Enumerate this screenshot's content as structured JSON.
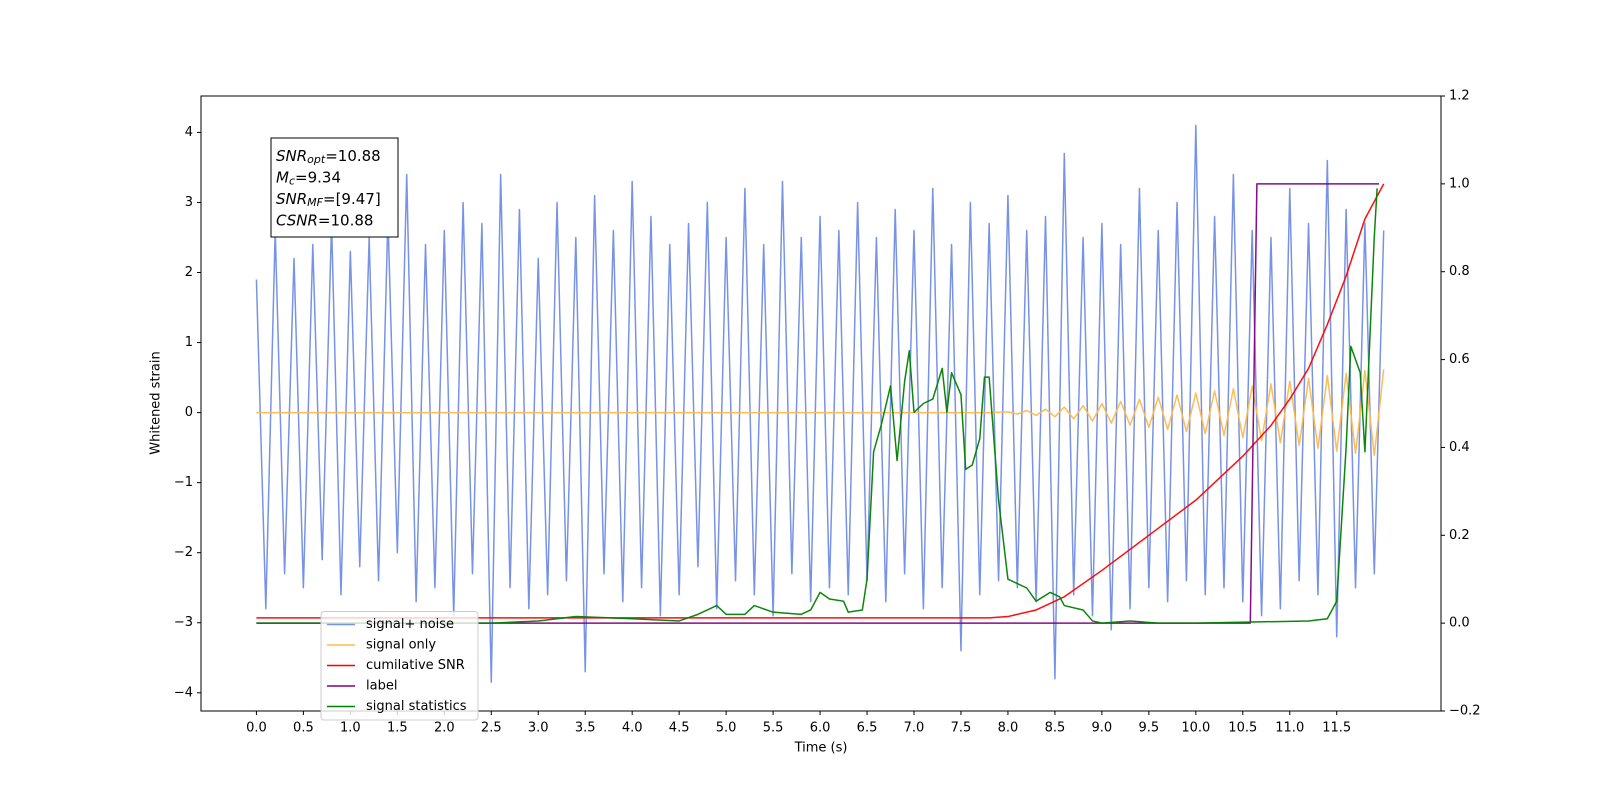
{
  "chart_data": {
    "type": "line",
    "xlabel": "Time (s)",
    "ylabel": "Whitened strain",
    "xlim": [
      -0.59,
      12.61
    ],
    "ylim": [
      -4.26,
      4.52
    ],
    "y2lim": [
      -0.2,
      1.2
    ],
    "xticks": [
      {
        "value": 0,
        "label": "0.0"
      },
      0.5,
      {
        "value": 1,
        "label": "1.0"
      },
      1.5,
      {
        "value": 2,
        "label": "2.0"
      },
      2.5,
      {
        "value": 3,
        "label": "3.0"
      },
      3.5,
      {
        "value": 4,
        "label": "4.0"
      },
      4.5,
      {
        "value": 5,
        "label": "5.0"
      },
      5.5,
      {
        "value": 6,
        "label": "6.0"
      },
      6.5,
      {
        "value": 7,
        "label": "7.0"
      },
      7.5,
      {
        "value": 8,
        "label": "8.0"
      },
      8.5,
      {
        "value": 9,
        "label": "9.0"
      },
      9.5,
      {
        "value": 10,
        "label": "10.0"
      },
      10.5,
      {
        "value": 11,
        "label": "11.0"
      },
      11.5
    ],
    "yticks": [
      {
        "value": -4,
        "label": "−4"
      },
      {
        "value": -3,
        "label": "−3"
      },
      {
        "value": -2,
        "label": "−2"
      },
      {
        "value": -1,
        "label": "−1"
      },
      0,
      1,
      2,
      3,
      4
    ],
    "y2ticks": [
      {
        "value": -0.2,
        "label": "−0.2"
      },
      {
        "value": 0,
        "label": "0.0"
      },
      0.2,
      0.4,
      0.6,
      0.8,
      {
        "value": 1,
        "label": "1.0"
      },
      1.2
    ],
    "legend_loc": "lower left",
    "annotations": [
      {
        "symbol": "SNR",
        "subscript": "opt",
        "text": "=10.88"
      },
      {
        "symbol": "M",
        "subscript": "c",
        "text": "=9.34"
      },
      {
        "symbol": "SNR",
        "subscript": "MF",
        "text": "=[9.47]"
      },
      {
        "symbol": "CSNR",
        "text": "=10.88"
      }
    ],
    "series": [
      {
        "name": "signal+ noise",
        "color": "#7893e6",
        "x": [
          0.0,
          0.1,
          0.2,
          0.3,
          0.4,
          0.5,
          0.6,
          0.7,
          0.8,
          0.9,
          1.0,
          1.1,
          1.2,
          1.3,
          1.4,
          1.5,
          1.6,
          1.7,
          1.8,
          1.9,
          2.0,
          2.1,
          2.2,
          2.3,
          2.4,
          2.5,
          2.6,
          2.7,
          2.8,
          2.9,
          3.0,
          3.1,
          3.2,
          3.3,
          3.4,
          3.5,
          3.6,
          3.7,
          3.8,
          3.9,
          4.0,
          4.1,
          4.2,
          4.3,
          4.4,
          4.5,
          4.6,
          4.7,
          4.8,
          4.9,
          5.0,
          5.1,
          5.2,
          5.3,
          5.4,
          5.5,
          5.6,
          5.7,
          5.8,
          5.9,
          6.0,
          6.1,
          6.2,
          6.3,
          6.4,
          6.5,
          6.6,
          6.7,
          6.8,
          6.9,
          7.0,
          7.1,
          7.2,
          7.3,
          7.4,
          7.5,
          7.6,
          7.7,
          7.8,
          7.9,
          8.0,
          8.1,
          8.2,
          8.3,
          8.4,
          8.5,
          8.6,
          8.7,
          8.8,
          8.9,
          9.0,
          9.1,
          9.2,
          9.3,
          9.4,
          9.5,
          9.6,
          9.7,
          9.8,
          9.9,
          10.0,
          10.1,
          10.2,
          10.3,
          10.4,
          10.5,
          10.6,
          10.7,
          10.8,
          10.9,
          11.0,
          11.1,
          11.2,
          11.3,
          11.4,
          11.5,
          11.6,
          11.7,
          11.8,
          11.9,
          12.0
        ],
        "values": [
          1.9,
          -2.8,
          2.6,
          -2.3,
          2.2,
          -2.5,
          2.4,
          -2.1,
          2.7,
          -2.6,
          2.3,
          -2.2,
          2.5,
          -2.4,
          2.8,
          -2.0,
          3.4,
          -2.7,
          2.4,
          -2.5,
          2.6,
          -2.9,
          3.0,
          -2.3,
          2.7,
          -3.85,
          3.4,
          -2.5,
          2.9,
          -2.8,
          2.2,
          -2.6,
          3.0,
          -2.4,
          2.5,
          -3.7,
          3.1,
          -2.3,
          2.6,
          -2.7,
          3.3,
          -2.5,
          2.8,
          -2.9,
          2.4,
          -2.6,
          2.7,
          -2.2,
          3.0,
          -2.8,
          2.5,
          -2.4,
          3.2,
          -2.6,
          2.4,
          -2.9,
          3.3,
          -2.3,
          2.5,
          -2.7,
          2.8,
          -2.5,
          2.6,
          -2.6,
          3.0,
          -2.4,
          2.5,
          -2.7,
          2.9,
          -2.3,
          2.6,
          -2.8,
          3.2,
          -2.5,
          2.4,
          -3.4,
          3.0,
          -2.6,
          2.7,
          -2.4,
          3.1,
          -2.5,
          2.6,
          -2.7,
          2.8,
          -3.8,
          3.7,
          -2.6,
          2.5,
          -2.9,
          2.7,
          -3.1,
          2.4,
          -2.8,
          3.2,
          -2.5,
          2.6,
          -2.7,
          3.0,
          -2.4,
          4.1,
          -2.6,
          2.8,
          -2.5,
          3.4,
          -2.7,
          2.6,
          -2.9,
          2.5,
          -2.8,
          3.2,
          -2.4,
          2.7,
          -2.6,
          3.6,
          -3.2,
          2.9,
          -2.5,
          2.7,
          -2.3,
          2.6
        ]
      },
      {
        "name": "signal only",
        "color": "#ffb84d",
        "x": [
          0.0,
          7.8,
          8.0,
          8.1,
          8.2,
          8.3,
          8.4,
          8.5,
          8.6,
          8.7,
          8.8,
          8.9,
          9.0,
          9.1,
          9.2,
          9.3,
          9.4,
          9.5,
          9.6,
          9.7,
          9.8,
          9.9,
          10.0,
          10.1,
          10.2,
          10.3,
          10.4,
          10.5,
          10.6,
          10.7,
          10.8,
          10.9,
          11.0,
          11.1,
          11.2,
          11.3,
          11.4,
          11.5,
          11.6,
          11.7,
          11.8,
          11.9,
          12.0
        ],
        "values": [
          0,
          0,
          0.01,
          -0.02,
          0.03,
          -0.04,
          0.05,
          -0.06,
          0.08,
          -0.09,
          0.1,
          -0.12,
          0.13,
          -0.15,
          0.16,
          -0.18,
          0.19,
          -0.21,
          0.22,
          -0.24,
          0.25,
          -0.27,
          0.28,
          -0.3,
          0.31,
          -0.33,
          0.34,
          -0.36,
          0.38,
          -0.4,
          0.41,
          -0.43,
          0.45,
          -0.47,
          0.49,
          -0.51,
          0.53,
          -0.55,
          0.56,
          -0.58,
          0.6,
          -0.61,
          0.62
        ]
      },
      {
        "name": "cumilative SNR",
        "color": "#ff0000",
        "axis": "y2",
        "x": [
          0.0,
          7.8,
          8.0,
          8.3,
          8.6,
          9.0,
          9.5,
          10.0,
          10.5,
          10.8,
          11.0,
          11.2,
          11.4,
          11.6,
          11.8,
          12.0
        ],
        "values": [
          0.012,
          0.012,
          0.015,
          0.03,
          0.06,
          0.12,
          0.2,
          0.28,
          0.38,
          0.45,
          0.51,
          0.58,
          0.68,
          0.79,
          0.92,
          1.0
        ]
      },
      {
        "name": "label",
        "color": "#800080",
        "axis": "y2",
        "x": [
          0.0,
          10.58,
          10.65,
          11.95
        ],
        "values": [
          0,
          0,
          1.0,
          1.0
        ]
      },
      {
        "name": "signal statistics",
        "color": "#008000",
        "axis": "y2",
        "x": [
          0.0,
          2.5,
          3.0,
          3.4,
          4.0,
          4.5,
          4.7,
          4.9,
          5.0,
          5.2,
          5.3,
          5.5,
          5.8,
          5.9,
          6.0,
          6.1,
          6.25,
          6.3,
          6.45,
          6.5,
          6.57,
          6.65,
          6.75,
          6.82,
          6.9,
          6.95,
          7.0,
          7.1,
          7.2,
          7.3,
          7.35,
          7.4,
          7.5,
          7.55,
          7.62,
          7.7,
          7.75,
          7.8,
          7.9,
          8.0,
          8.1,
          8.2,
          8.3,
          8.45,
          8.55,
          8.6,
          8.8,
          8.9,
          9.0,
          9.3,
          9.6,
          10.0,
          11.2,
          11.4,
          11.5,
          11.6,
          11.65,
          11.75,
          11.8,
          11.9,
          11.93
        ],
        "values": [
          0,
          0,
          0.005,
          0.015,
          0.01,
          0.005,
          0.02,
          0.04,
          0.02,
          0.02,
          0.04,
          0.025,
          0.02,
          0.03,
          0.07,
          0.055,
          0.05,
          0.025,
          0.03,
          0.1,
          0.39,
          0.45,
          0.54,
          0.37,
          0.55,
          0.62,
          0.48,
          0.5,
          0.51,
          0.58,
          0.48,
          0.57,
          0.52,
          0.35,
          0.36,
          0.42,
          0.56,
          0.56,
          0.28,
          0.1,
          0.09,
          0.08,
          0.05,
          0.07,
          0.06,
          0.04,
          0.03,
          0.005,
          0,
          0.005,
          0,
          0,
          0.005,
          0.01,
          0.05,
          0.4,
          0.63,
          0.57,
          0.39,
          0.88,
          0.99
        ]
      }
    ]
  }
}
